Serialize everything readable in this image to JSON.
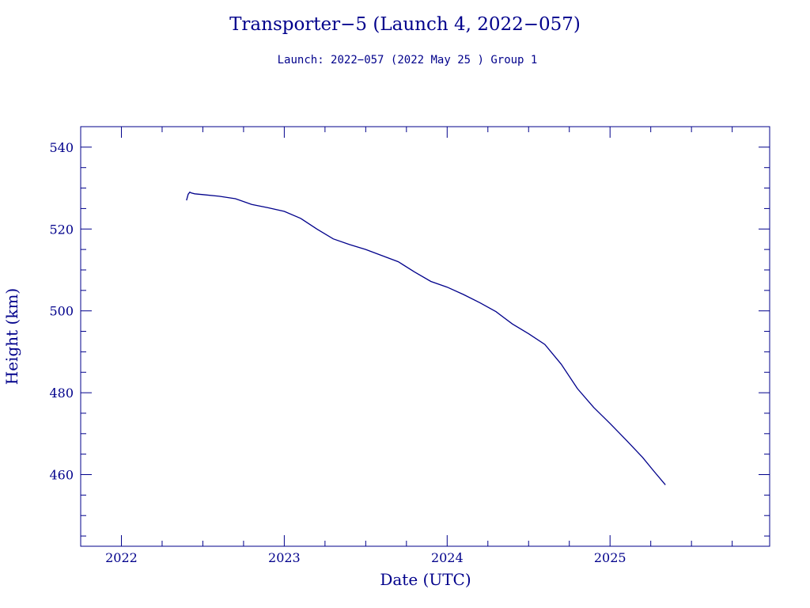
{
  "colors": {
    "ink": "#00008b",
    "background": "#ffffff"
  },
  "chart_data": {
    "type": "line",
    "title": "Transporter−5 (Launch 4, 2022−057)",
    "subtitle": "Launch: 2022−057  (2022 May 25 )  Group 1",
    "xlabel": "Date (UTC)",
    "ylabel": "Height (km)",
    "xlim": [
      2021.75,
      2025.98
    ],
    "ylim": [
      442.5,
      545
    ],
    "x_ticks": [
      2022,
      2023,
      2024,
      2025
    ],
    "x_tick_labels": [
      "2022",
      "2023",
      "2024",
      "2025"
    ],
    "y_ticks": [
      460,
      480,
      500,
      520,
      540
    ],
    "y_tick_labels": [
      "460",
      "480",
      "500",
      "520",
      "540"
    ],
    "grid": false,
    "legend": "none",
    "series": [
      {
        "x": [
          2022.4,
          2022.41,
          2022.42,
          2022.43,
          2022.45,
          2022.5,
          2022.6,
          2022.7,
          2022.8,
          2022.9,
          2023.0,
          2023.1,
          2023.2,
          2023.3,
          2023.4,
          2023.5,
          2023.6,
          2023.7,
          2023.8,
          2023.9,
          2024.0,
          2024.1,
          2024.2,
          2024.3,
          2024.4,
          2024.5,
          2024.6,
          2024.7,
          2024.8,
          2024.9,
          2025.0,
          2025.1,
          2025.2,
          2025.27,
          2025.34
        ],
        "y": [
          527.0,
          528.5,
          529.0,
          528.8,
          528.6,
          528.4,
          528.0,
          527.4,
          526.0,
          525.2,
          524.3,
          522.6,
          520.0,
          517.6,
          516.2,
          515.0,
          513.5,
          512.0,
          509.5,
          507.2,
          505.8,
          504.0,
          502.0,
          499.8,
          496.8,
          494.4,
          491.8,
          487.0,
          481.0,
          476.4,
          472.5,
          468.4,
          464.2,
          460.8,
          457.5
        ]
      }
    ]
  }
}
